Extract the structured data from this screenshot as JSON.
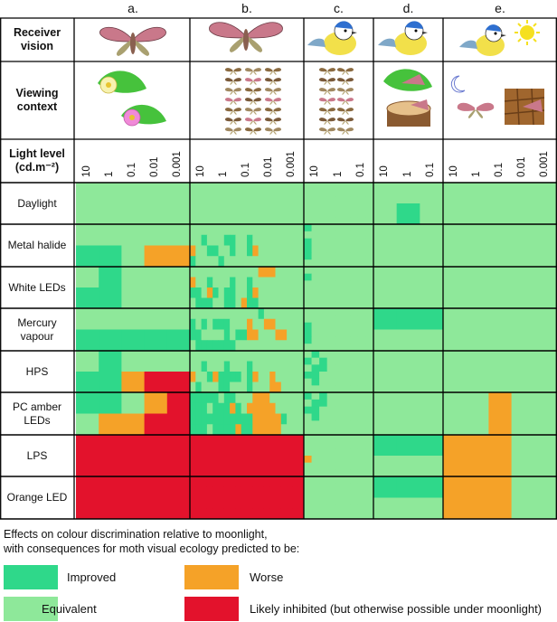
{
  "chart_data": {
    "type": "heatmap",
    "panels": [
      "a.",
      "b.",
      "c.",
      "d.",
      "e."
    ],
    "row_header_labels": {
      "receiver_vision": "Receiver vision",
      "viewing_context": "Viewing context",
      "light_level": "Light level (cd.m⁻²)"
    },
    "light_levels": {
      "a.": [
        "10",
        "1",
        "0.1",
        "0.01",
        "0.001"
      ],
      "b.": [
        "10",
        "1",
        "0.1",
        "0.01",
        "0.001"
      ],
      "c.": [
        "10",
        "1",
        "0.1"
      ],
      "d.": [
        "10",
        "1",
        "0.1"
      ],
      "e.": [
        "10",
        "1",
        "0.1",
        "0.01",
        "0.001"
      ]
    },
    "lamps": [
      "Daylight",
      "Metal halide",
      "White LEDs",
      "Mercury vapour",
      "HPS",
      "PC amber LEDs",
      "LPS",
      "Orange LED"
    ],
    "categories": [
      "Improved",
      "Equivalent",
      "Worse",
      "Likely inhibited (but otherwise possible under moonlight)"
    ],
    "category_colors": [
      "#2fd88a",
      "#8ee89a",
      "#f5a228",
      "#e3122c"
    ],
    "cell_rows": {
      "Daylight": [
        "EEEEE",
        "EEEEE",
        "EEEEEEEEEEEEEEEEEEEE",
        "EEEEEEEEEEEEEEEEEEEE",
        "EEEEEEEEEEEEEEEEEEEE",
        "EEEEEEEEEEEEEEEEEEEE",
        "EEEEEEEEE",
        "EEEEEEEEE",
        "EEEEEEEEE",
        "EEEEEEEEE",
        "EEEEEEEEE",
        "EEEEEEEEE",
        "EEE",
        "EIE",
        "EEEEE",
        "EEEEE"
      ],
      "Metal halide": [
        "EEEEE",
        "IIEWW",
        "EEEEEEEEEEEEEEEEEEEE",
        "EEIEEEIIEEIEEEEEEEEE",
        "WEEIIEEIEEIWEEEEEEEE",
        "IEEEEIEEEEEEEEEEEEEE",
        "IEEEEEEEE",
        "EEEEEEEEE",
        "IEEEEEEEE",
        "IEEEEEEEE",
        "IEEEEEEEE",
        "EEEEEEEEE",
        "EEE",
        "EEE",
        "EEEEE",
        "EEEEE"
      ],
      "White LEDs": [
        "EIEEE",
        "IIEEE",
        "EEEEEEEEEEEEWWWEEEEE",
        "WEEIEEEIEEIEEEEEEEEE",
        "IIEWIEIIEEIWEEEEEEEE",
        "EIIIEEIIEWIIEEEEEEEE",
        "EEEEEEEEE",
        "IEEEEEEEE",
        "EEEEEEEEE",
        "EEEEEEEEE",
        "EEEEEEEEE",
        "EEEEEEEEE",
        "EEE",
        "EEE",
        "EEEEE",
        "EEEEE"
      ],
      "Mercury vapour": [
        "EEEEE",
        "IIIII",
        "EEEEEEEEEEEEIEEEEEEE",
        "IEIEIIIEEEWEEWWEEEEE",
        "IIEEEEIEIIWWEEEWWEEE",
        "EIIIIIIIEEEEEEEEEEEE",
        "EEEEEEEEE",
        "EEEEEEEEE",
        "IEEEEEEEE",
        "IEEEEEEEE",
        "IEEEEEEEE",
        "EEEEEEEEE",
        "III",
        "EEE",
        "EEEEE",
        "EEEEE"
      ],
      "HPS": [
        "EIEEE",
        "IIWRR",
        "EEEEEEEEEEEEEEEEEEEE",
        "EEIEEEIEEEIEEEEEEEEE",
        "WEEIWIIIIEIWEEWEEEEE",
        "EIEEEIIEEEIEEEWWEEEE",
        "EIEEEEEEE",
        "IEIEEEEEE",
        "EIIEEEEEE",
        "IIEEEEEEE",
        "EIEEEEEEE",
        "EEEEEEEEE",
        "EEE",
        "EEE",
        "EEEEE",
        "EEEEE"
      ],
      "PC amber LEDs": [
        "IIEWR",
        "EWWRR",
        "IIIIIEIIEEEWWWEEEEEE",
        "IIIEIIIWIEWWWWWEEEEE",
        "IIIIIIIIIIIWWWWWIEEE",
        "IIIEIIIIWIIWWWWWEEEE",
        "IEIEEEEEE",
        "EIIEEEEEE",
        "IIEEEEEEE",
        "EIEEEEEEE",
        "EEEEEEEEE",
        "EEEEEEEEE",
        "EEE",
        "EEE",
        "EEWEE",
        "EEWEE"
      ],
      "LPS": [
        "RRRRR",
        "RRRRR",
        "RRRRRRRRRRRRRRRRRRRR",
        "RRRRRRRRRRRRRRRRRRRR",
        "RRRRRRRRRRRRRRRRRRRR",
        "RRRRRRRRRRRRRRRRRRRR",
        "EEEEEEEEE",
        "EEEEEEEEE",
        "EEEEEEEEE",
        "WEEEEEEEE",
        "EEEEEEEEE",
        "EEEEEEEEE",
        "III",
        "EEE",
        "WWWEE",
        "WWWEE"
      ],
      "Orange LED": [
        "RRRRR",
        "RRRRR",
        "RRRRRRRRRRRRRRRRRRRR",
        "RRRRRRRRRRRRRRRRRRRR",
        "RRRRRRRRRRRRRRRRRRRR",
        "RRRRRRRRRRRRRRRRRRRR",
        "EEEEEEEEE",
        "EEEEEEEEE",
        "EEEEEEEEE",
        "EEEEEEEEE",
        "EEEEEEEEE",
        "EEEEEEEEE",
        "III",
        "EEE",
        "WWWEE",
        "WWWEE"
      ]
    }
  },
  "lamp_labels": [
    "Daylight",
    "Metal halide",
    "White LEDs",
    "Mercury vapour",
    "HPS",
    "PC amber LEDs",
    "LPS",
    "Orange LED"
  ],
  "legend": {
    "caption_line1": "Effects on colour discrimination relative to moonlight,",
    "caption_line2": "with consequences for moth visual ecology predicted to be:",
    "improved": "Improved",
    "worse": "Worse",
    "equivalent": "Equivalent",
    "inhibited": "Likely inhibited (but otherwise possible under moonlight)"
  },
  "colors": {
    "improved": "#2fd88a",
    "equivalent": "#8ee89a",
    "worse": "#f5a228",
    "inhibited": "#e3122c",
    "grid": "#000000"
  }
}
